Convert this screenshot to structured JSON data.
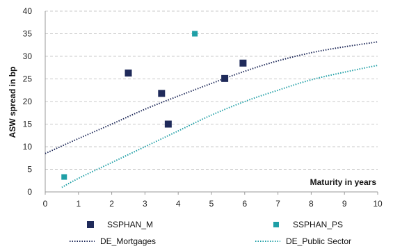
{
  "chart_data": {
    "type": "scatter",
    "title": "",
    "xlabel": "Maturity in years",
    "ylabel": "ASW spread in bp",
    "xlim": [
      0,
      10
    ],
    "ylim": [
      0,
      40
    ],
    "x_ticks": [
      0,
      1,
      2,
      3,
      4,
      5,
      6,
      7,
      8,
      9,
      10
    ],
    "y_ticks": [
      0,
      5,
      10,
      15,
      20,
      25,
      30,
      35,
      40
    ],
    "grid": "horizontal dashed",
    "legend_position": "bottom",
    "scatter_series": [
      {
        "name": "SSPHAN_M",
        "color": "#1f2a5a",
        "marker": "square",
        "points": [
          {
            "x": 2.5,
            "y": 26.3
          },
          {
            "x": 3.5,
            "y": 21.8
          },
          {
            "x": 3.7,
            "y": 15.0
          },
          {
            "x": 5.4,
            "y": 25.1
          },
          {
            "x": 5.95,
            "y": 28.5
          }
        ]
      },
      {
        "name": "SSPHAN_PS",
        "color": "#1f9fa6",
        "marker": "square",
        "points": [
          {
            "x": 0.57,
            "y": 3.3
          },
          {
            "x": 4.5,
            "y": 35.0
          }
        ]
      }
    ],
    "line_series": [
      {
        "name": "DE_Mortgages",
        "color": "#1f2a5a",
        "style": "dotted",
        "points": [
          {
            "x": 0,
            "y": 8.5
          },
          {
            "x": 1,
            "y": 11.8
          },
          {
            "x": 2,
            "y": 15.0
          },
          {
            "x": 3,
            "y": 18.3
          },
          {
            "x": 4,
            "y": 21.2
          },
          {
            "x": 5,
            "y": 24.0
          },
          {
            "x": 6,
            "y": 26.7
          },
          {
            "x": 7,
            "y": 29.0
          },
          {
            "x": 8,
            "y": 30.8
          },
          {
            "x": 9,
            "y": 32.1
          },
          {
            "x": 10,
            "y": 33.2
          }
        ]
      },
      {
        "name": "DE_Public Sector",
        "color": "#1f9fa6",
        "style": "dotted",
        "points": [
          {
            "x": 0.5,
            "y": 1.0
          },
          {
            "x": 1,
            "y": 3.0
          },
          {
            "x": 2,
            "y": 6.5
          },
          {
            "x": 3,
            "y": 10.0
          },
          {
            "x": 4,
            "y": 13.5
          },
          {
            "x": 5,
            "y": 17.0
          },
          {
            "x": 6,
            "y": 20.0
          },
          {
            "x": 7,
            "y": 22.5
          },
          {
            "x": 8,
            "y": 24.8
          },
          {
            "x": 9,
            "y": 26.5
          },
          {
            "x": 10,
            "y": 28.0
          }
        ]
      }
    ]
  }
}
